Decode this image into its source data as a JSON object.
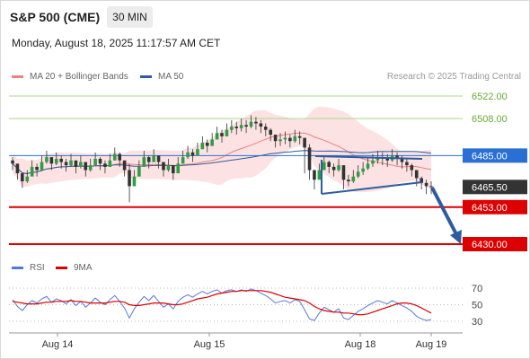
{
  "header": {
    "title": "S&P 500 (CME)",
    "interval": "30 MIN",
    "datetime": "Monday, August 18, 2025 11:17:57 AM CET"
  },
  "legend": {
    "bollinger_label": "MA 20 + Bollinger Bands",
    "ma50_label": "MA 50",
    "bollinger_color": "#f08080",
    "ma50_color": "#2e5c9e",
    "credit": "Research © 2025 Trading Central"
  },
  "rsi_legend": {
    "rsi_label": "RSI",
    "ma9_label": "9MA",
    "rsi_color": "#5577dd",
    "ma9_color": "#dd0000"
  },
  "chart_data": [
    {
      "type": "candlestick",
      "ylim": [
        6422,
        6530
      ],
      "x_ticks": [
        "Aug 14",
        "Aug 15",
        "Aug 18",
        "Aug 19"
      ],
      "price_levels": [
        {
          "label": "6522.00",
          "value": 6522.0,
          "kind": "target",
          "color": "#66aa33"
        },
        {
          "label": "6508.00",
          "value": 6508.0,
          "kind": "target",
          "color": "#66aa33"
        },
        {
          "label": "6485.00",
          "value": 6485.0,
          "kind": "pivot",
          "color": "#2a6fd6"
        },
        {
          "label": "6465.50",
          "value": 6465.5,
          "kind": "last",
          "color": "#333333"
        },
        {
          "label": "6453.00",
          "value": 6453.0,
          "kind": "support",
          "color": "#dd0000"
        },
        {
          "label": "6430.00",
          "value": 6430.0,
          "kind": "support",
          "color": "#dd0000"
        }
      ],
      "closes": [
        6480,
        6474,
        6469,
        6472,
        6478,
        6476,
        6481,
        6484,
        6480,
        6483,
        6481,
        6479,
        6482,
        6478,
        6481,
        6476,
        6479,
        6483,
        6480,
        6478,
        6482,
        6486,
        6482,
        6476,
        6466,
        6472,
        6478,
        6484,
        6481,
        6485,
        6481,
        6476,
        6479,
        6474,
        6480,
        6484,
        6487,
        6485,
        6489,
        6493,
        6491,
        6495,
        6499,
        6497,
        6501,
        6503,
        6502,
        6504,
        6503,
        6506,
        6505,
        6503,
        6501,
        6498,
        6494,
        6495,
        6496,
        6494,
        6497,
        6496,
        6490,
        6476,
        6470,
        6476,
        6481,
        6478,
        6476,
        6479,
        6470,
        6469,
        6472,
        6475,
        6477,
        6480,
        6482,
        6484,
        6483,
        6482,
        6485,
        6483,
        6481,
        6479,
        6476,
        6471,
        6468,
        6466,
        6465.5
      ],
      "highs": [
        6484,
        6478,
        6473,
        6476,
        6482,
        6480,
        6485,
        6488,
        6484,
        6487,
        6485,
        6483,
        6486,
        6482,
        6485,
        6480,
        6483,
        6487,
        6484,
        6482,
        6486,
        6490,
        6487,
        6481,
        6480,
        6476,
        6482,
        6488,
        6485,
        6489,
        6485,
        6480,
        6483,
        6478,
        6484,
        6488,
        6491,
        6489,
        6493,
        6497,
        6495,
        6499,
        6503,
        6501,
        6505,
        6507,
        6506,
        6508,
        6507,
        6510,
        6509,
        6507,
        6505,
        6502,
        6498,
        6499,
        6500,
        6498,
        6501,
        6500,
        6496,
        6492,
        6475,
        6480,
        6485,
        6482,
        6480,
        6483,
        6477,
        6473,
        6476,
        6479,
        6481,
        6484,
        6486,
        6488,
        6487,
        6486,
        6489,
        6487,
        6485,
        6483,
        6480,
        6476,
        6472,
        6470,
        6469
      ],
      "lows": [
        6476,
        6470,
        6465,
        6468,
        6474,
        6472,
        6477,
        6480,
        6476,
        6479,
        6477,
        6475,
        6478,
        6474,
        6477,
        6472,
        6475,
        6479,
        6476,
        6474,
        6478,
        6482,
        6478,
        6472,
        6456,
        6466,
        6474,
        6480,
        6477,
        6481,
        6477,
        6472,
        6475,
        6470,
        6476,
        6480,
        6483,
        6481,
        6485,
        6489,
        6487,
        6491,
        6495,
        6493,
        6497,
        6499,
        6498,
        6500,
        6499,
        6502,
        6501,
        6499,
        6497,
        6494,
        6490,
        6491,
        6492,
        6490,
        6493,
        6492,
        6474,
        6470,
        6464,
        6471,
        6477,
        6474,
        6472,
        6475,
        6464,
        6466,
        6468,
        6471,
        6473,
        6476,
        6478,
        6480,
        6479,
        6478,
        6481,
        6479,
        6477,
        6475,
        6472,
        6466,
        6464,
        6461,
        6461
      ]
    },
    {
      "type": "line",
      "title": "RSI",
      "ylim": [
        20,
        80
      ],
      "y_ticks": [
        70,
        50,
        30
      ],
      "series": [
        {
          "name": "RSI",
          "values": [
            56,
            48,
            43,
            50,
            55,
            52,
            57,
            60,
            53,
            57,
            55,
            51,
            56,
            49,
            54,
            47,
            52,
            58,
            53,
            50,
            56,
            61,
            54,
            46,
            34,
            45,
            53,
            60,
            55,
            61,
            54,
            47,
            51,
            45,
            54,
            59,
            62,
            59,
            63,
            66,
            63,
            66,
            68,
            64,
            67,
            68,
            66,
            68,
            66,
            69,
            67,
            64,
            61,
            57,
            52,
            54,
            55,
            52,
            56,
            54,
            44,
            33,
            31,
            40,
            47,
            44,
            41,
            45,
            34,
            32,
            37,
            42,
            45,
            49,
            52,
            55,
            53,
            51,
            55,
            52,
            49,
            46,
            42,
            36,
            33,
            31,
            32
          ]
        },
        {
          "name": "9MA",
          "values": [
            54,
            53,
            52,
            51,
            51,
            51,
            52,
            53,
            53,
            54,
            54,
            54,
            55,
            54,
            54,
            53,
            52,
            52,
            52,
            52,
            53,
            54,
            54,
            53,
            50,
            49,
            49,
            50,
            51,
            52,
            52,
            52,
            51,
            50,
            50,
            51,
            53,
            55,
            57,
            58,
            59,
            61,
            63,
            64,
            65,
            66,
            66,
            67,
            67,
            67,
            67,
            67,
            66,
            65,
            63,
            61,
            59,
            58,
            57,
            56,
            55,
            52,
            48,
            45,
            43,
            42,
            41,
            41,
            40,
            40,
            39,
            38,
            38,
            39,
            41,
            43,
            45,
            47,
            49,
            51,
            52,
            52,
            51,
            49,
            46,
            43,
            40
          ]
        }
      ]
    }
  ]
}
